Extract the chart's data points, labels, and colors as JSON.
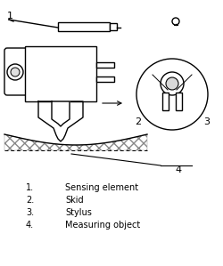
{
  "bg_color": "#ffffff",
  "legend_items": [
    {
      "num": "1.",
      "text": "Sensing element"
    },
    {
      "num": "2.",
      "text": "Skid"
    },
    {
      "num": "3.",
      "text": "Stylus"
    },
    {
      "num": "4.",
      "text": "Measuring object"
    }
  ],
  "label_1": "1",
  "label_2": "2",
  "label_3": "3",
  "label_4": "4",
  "line_color": "#000000",
  "font_size": 7
}
